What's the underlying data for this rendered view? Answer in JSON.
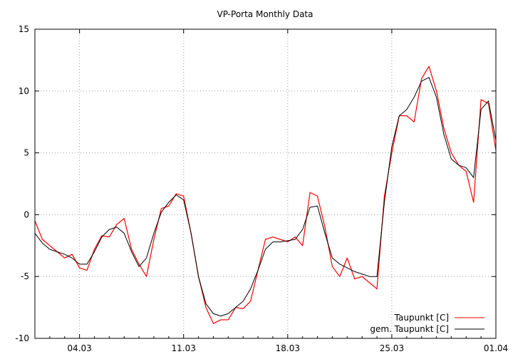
{
  "chart_data": {
    "type": "line",
    "title": "VP-Porta Monthly Data",
    "xlabel": "",
    "ylabel": "",
    "xlim": [
      0,
      31
    ],
    "ylim": [
      -10,
      15
    ],
    "x_ticks": [
      {
        "label": "04.03",
        "value": 3
      },
      {
        "label": "11.03",
        "value": 10
      },
      {
        "label": "18.03",
        "value": 17
      },
      {
        "label": "25.03",
        "value": 24
      },
      {
        "label": "01.04",
        "value": 31
      }
    ],
    "y_ticks": [
      {
        "label": "15",
        "value": 15
      },
      {
        "label": "10",
        "value": 10
      },
      {
        "label": "5",
        "value": 5
      },
      {
        "label": "0",
        "value": 0
      },
      {
        "label": "-5",
        "value": -5
      },
      {
        "label": "-10",
        "value": -10
      }
    ],
    "grid": true,
    "legend_position": "bottom-right",
    "series": [
      {
        "name": "Taupunkt [C]",
        "color": "#ff0000",
        "x": [
          0,
          0.5,
          1,
          1.5,
          2,
          2.5,
          3,
          3.5,
          4,
          4.5,
          5,
          5.5,
          6,
          6.5,
          7,
          7.5,
          8,
          8.5,
          9,
          9.5,
          10,
          10.5,
          11,
          11.5,
          12,
          12.5,
          13,
          13.5,
          14,
          14.5,
          15,
          15.5,
          16,
          16.5,
          17,
          17.5,
          18,
          18.5,
          19,
          19.5,
          20,
          20.5,
          21,
          21.5,
          22,
          22.5,
          23,
          23.5,
          24,
          24.5,
          25,
          25.5,
          26,
          26.5,
          27,
          27.5,
          28,
          28.5,
          29,
          29.5,
          30,
          30.5,
          31
        ],
        "values": [
          -0.5,
          -2.0,
          -2.5,
          -3.0,
          -3.5,
          -3.2,
          -4.3,
          -4.5,
          -2.8,
          -1.7,
          -1.8,
          -0.8,
          -0.3,
          -2.8,
          -4.0,
          -5.0,
          -2.0,
          0.5,
          0.7,
          1.7,
          1.5,
          -1.5,
          -5.0,
          -7.5,
          -8.8,
          -8.5,
          -8.5,
          -7.5,
          -7.6,
          -7.0,
          -4.5,
          -2.0,
          -1.8,
          -2.0,
          -2.2,
          -1.8,
          -2.5,
          1.8,
          1.5,
          -1.0,
          -4.2,
          -5.0,
          -3.5,
          -5.2,
          -5.0,
          -5.5,
          -6.0,
          1.5,
          5.0,
          8.0,
          8.0,
          7.5,
          11.0,
          12.0,
          10.0,
          7.0,
          5.0,
          4.0,
          3.5,
          1.0,
          9.3,
          9.0,
          5.2
        ]
      },
      {
        "name": "gem. Taupunkt [C]",
        "color": "#000000",
        "x": [
          0,
          0.5,
          1,
          1.5,
          2,
          2.5,
          3,
          3.5,
          4,
          4.5,
          5,
          5.5,
          6,
          6.5,
          7,
          7.5,
          8,
          8.5,
          9,
          9.5,
          10,
          10.5,
          11,
          11.5,
          12,
          12.5,
          13,
          13.5,
          14,
          14.5,
          15,
          15.5,
          16,
          16.5,
          17,
          17.5,
          18,
          18.5,
          19,
          19.5,
          20,
          20.5,
          21,
          21.5,
          22,
          22.5,
          23,
          23.5,
          24,
          24.5,
          25,
          25.5,
          26,
          26.5,
          27,
          27.5,
          28,
          28.5,
          29,
          29.5,
          30,
          30.5,
          31
        ],
        "values": [
          -1.5,
          -2.3,
          -2.8,
          -3.0,
          -3.2,
          -3.5,
          -4.0,
          -4.0,
          -3.0,
          -1.8,
          -1.2,
          -1.0,
          -1.5,
          -3.0,
          -4.2,
          -3.5,
          -1.5,
          0.2,
          1.0,
          1.6,
          1.2,
          -1.5,
          -5.0,
          -7.2,
          -8.0,
          -8.2,
          -8.0,
          -7.5,
          -7.0,
          -6.0,
          -4.5,
          -2.8,
          -2.2,
          -2.2,
          -2.1,
          -2.0,
          -1.2,
          0.6,
          0.7,
          -1.5,
          -3.5,
          -4.0,
          -4.3,
          -4.6,
          -4.8,
          -5.0,
          -5.0,
          1.0,
          5.5,
          8.0,
          8.5,
          9.5,
          10.8,
          11.1,
          9.5,
          6.5,
          4.5,
          4.0,
          3.8,
          3.0,
          8.5,
          9.2,
          6.0
        ]
      }
    ]
  }
}
